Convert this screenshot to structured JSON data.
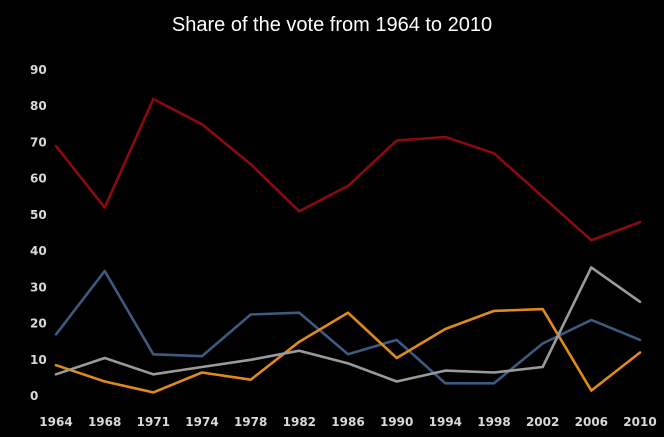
{
  "chart_data": {
    "type": "line",
    "title": "Share of the vote from 1964 to 2010",
    "xlabel": "",
    "ylabel": "",
    "x": [
      1964,
      1968,
      1971,
      1974,
      1978,
      1982,
      1986,
      1990,
      1994,
      1998,
      2002,
      2006,
      2010
    ],
    "x_tick_labels": [
      "1964",
      "1968",
      "1971",
      "1974",
      "1978",
      "1982",
      "1986",
      "1990",
      "1994",
      "1998",
      "2002",
      "2006",
      "2010"
    ],
    "y_ticks": [
      0,
      10,
      20,
      30,
      40,
      50,
      60,
      70,
      80,
      90
    ],
    "y_tick_labels": [
      "0",
      "10",
      "20",
      "30",
      "40",
      "50",
      "60",
      "70",
      "80",
      "90"
    ],
    "ylim": [
      0,
      90
    ],
    "grid": false,
    "legend": "none",
    "background": "#000000",
    "series": [
      {
        "color": "#8b0a0f",
        "values": [
          69,
          52,
          82,
          75,
          64,
          51,
          58,
          70.5,
          71.5,
          67,
          55,
          43,
          48
        ]
      },
      {
        "color": "#3d5a80",
        "values": [
          17,
          34.5,
          11.5,
          11,
          22.5,
          23,
          11.5,
          15.5,
          3.5,
          3.5,
          14.5,
          21,
          15.5
        ]
      },
      {
        "color": "#e08a1e",
        "values": [
          8.5,
          4,
          1,
          6.5,
          4.5,
          15,
          23,
          10.5,
          18.5,
          23.5,
          24,
          1.5,
          12
        ]
      },
      {
        "color": "#9a9a9a",
        "values": [
          6,
          10.5,
          6,
          8,
          10,
          12.5,
          9,
          4,
          7,
          6.5,
          8,
          35.5,
          26
        ]
      }
    ]
  }
}
